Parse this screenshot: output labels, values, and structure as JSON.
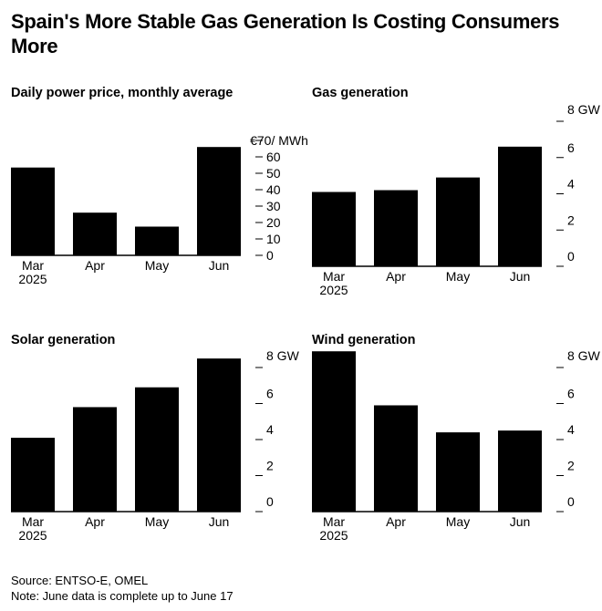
{
  "title": "Spain's More Stable Gas Generation Is Costing Consumers More",
  "source": "Source: ENTSO-E, OMEL",
  "note": "Note: June data is complete up to June 17",
  "chart_data": [
    {
      "type": "bar",
      "title": "Daily power price, monthly average",
      "categories": [
        "Mar",
        "Apr",
        "May",
        "Jun"
      ],
      "category_sub": [
        "2025",
        "",
        "",
        ""
      ],
      "values": [
        53.5,
        26,
        17.5,
        66
      ],
      "ylim": [
        0,
        70
      ],
      "yticks": [
        0,
        10,
        20,
        30,
        40,
        50,
        60,
        70
      ],
      "ytick_labels": [
        "0",
        "10",
        "20",
        "30",
        "40",
        "50",
        "60",
        "€70/ MWh"
      ],
      "xlabel": "",
      "ylabel": ""
    },
    {
      "type": "bar",
      "title": "Gas generation",
      "categories": [
        "Mar",
        "Apr",
        "May",
        "Jun"
      ],
      "category_sub": [
        "2025",
        "",
        "",
        ""
      ],
      "values": [
        4.1,
        4.2,
        4.9,
        6.6
      ],
      "ylim": [
        0,
        8
      ],
      "yticks": [
        0,
        2,
        4,
        6,
        8
      ],
      "ytick_labels": [
        "0",
        "2",
        "4",
        "6",
        "8 GW"
      ],
      "xlabel": "",
      "ylabel": ""
    },
    {
      "type": "bar",
      "title": "Solar generation",
      "categories": [
        "Mar",
        "Apr",
        "May",
        "Jun"
      ],
      "category_sub": [
        "2025",
        "",
        "",
        ""
      ],
      "values": [
        4.1,
        5.8,
        6.9,
        8.5
      ],
      "ylim": [
        0,
        8
      ],
      "yticks": [
        0,
        2,
        4,
        6,
        8
      ],
      "ytick_labels": [
        "0",
        "2",
        "4",
        "6",
        "8 GW"
      ],
      "xlabel": "",
      "ylabel": ""
    },
    {
      "type": "bar",
      "title": "Wind generation",
      "categories": [
        "Mar",
        "Apr",
        "May",
        "Jun"
      ],
      "category_sub": [
        "2025",
        "",
        "",
        ""
      ],
      "values": [
        8.9,
        5.9,
        4.4,
        4.5
      ],
      "ylim": [
        0,
        8
      ],
      "yticks": [
        0,
        2,
        4,
        6,
        8
      ],
      "ytick_labels": [
        "0",
        "2",
        "4",
        "6",
        "8 GW"
      ],
      "xlabel": "",
      "ylabel": ""
    }
  ]
}
